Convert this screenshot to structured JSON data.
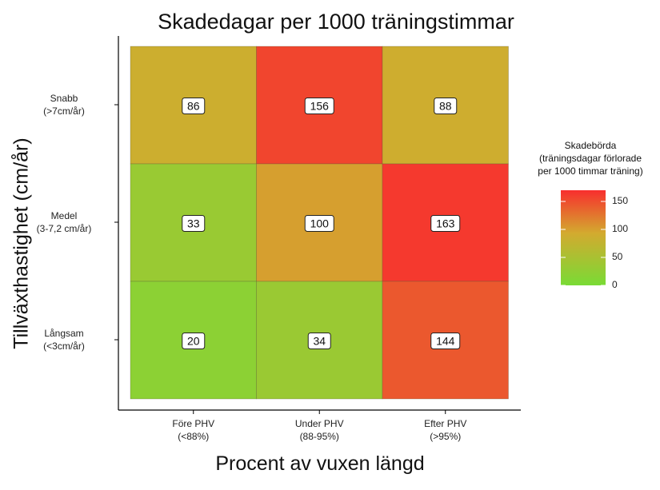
{
  "chart_data": {
    "type": "heatmap",
    "title": "Skadedagar per 1000 träningstimmar",
    "xlabel": "Procent av vuxen längd",
    "ylabel": "Tillväxthastighet (cm/år)",
    "x_categories": [
      {
        "line1": "Före PHV",
        "line2": "(<88%)"
      },
      {
        "line1": "Under PHV",
        "line2": "(88-95%)"
      },
      {
        "line1": "Efter PHV",
        "line2": "(>95%)"
      }
    ],
    "y_categories": [
      {
        "line1": "Snabb",
        "line2": "(>7cm/år)"
      },
      {
        "line1": "Medel",
        "line2": "(3-7,2 cm/år)"
      },
      {
        "line1": "Långsam",
        "line2": "(<3cm/år)"
      }
    ],
    "values": [
      [
        86,
        156,
        88
      ],
      [
        33,
        100,
        163
      ],
      [
        20,
        34,
        144
      ]
    ],
    "legend": {
      "title_lines": [
        "Skadebörda",
        "(träningsdagar förlorade",
        "per 1000 timmar träning)"
      ],
      "ticks": [
        0,
        50,
        100,
        150
      ],
      "range": [
        0,
        170
      ],
      "colors": [
        "#79db35",
        "#d3aa2f",
        "#f82e2e"
      ]
    }
  }
}
